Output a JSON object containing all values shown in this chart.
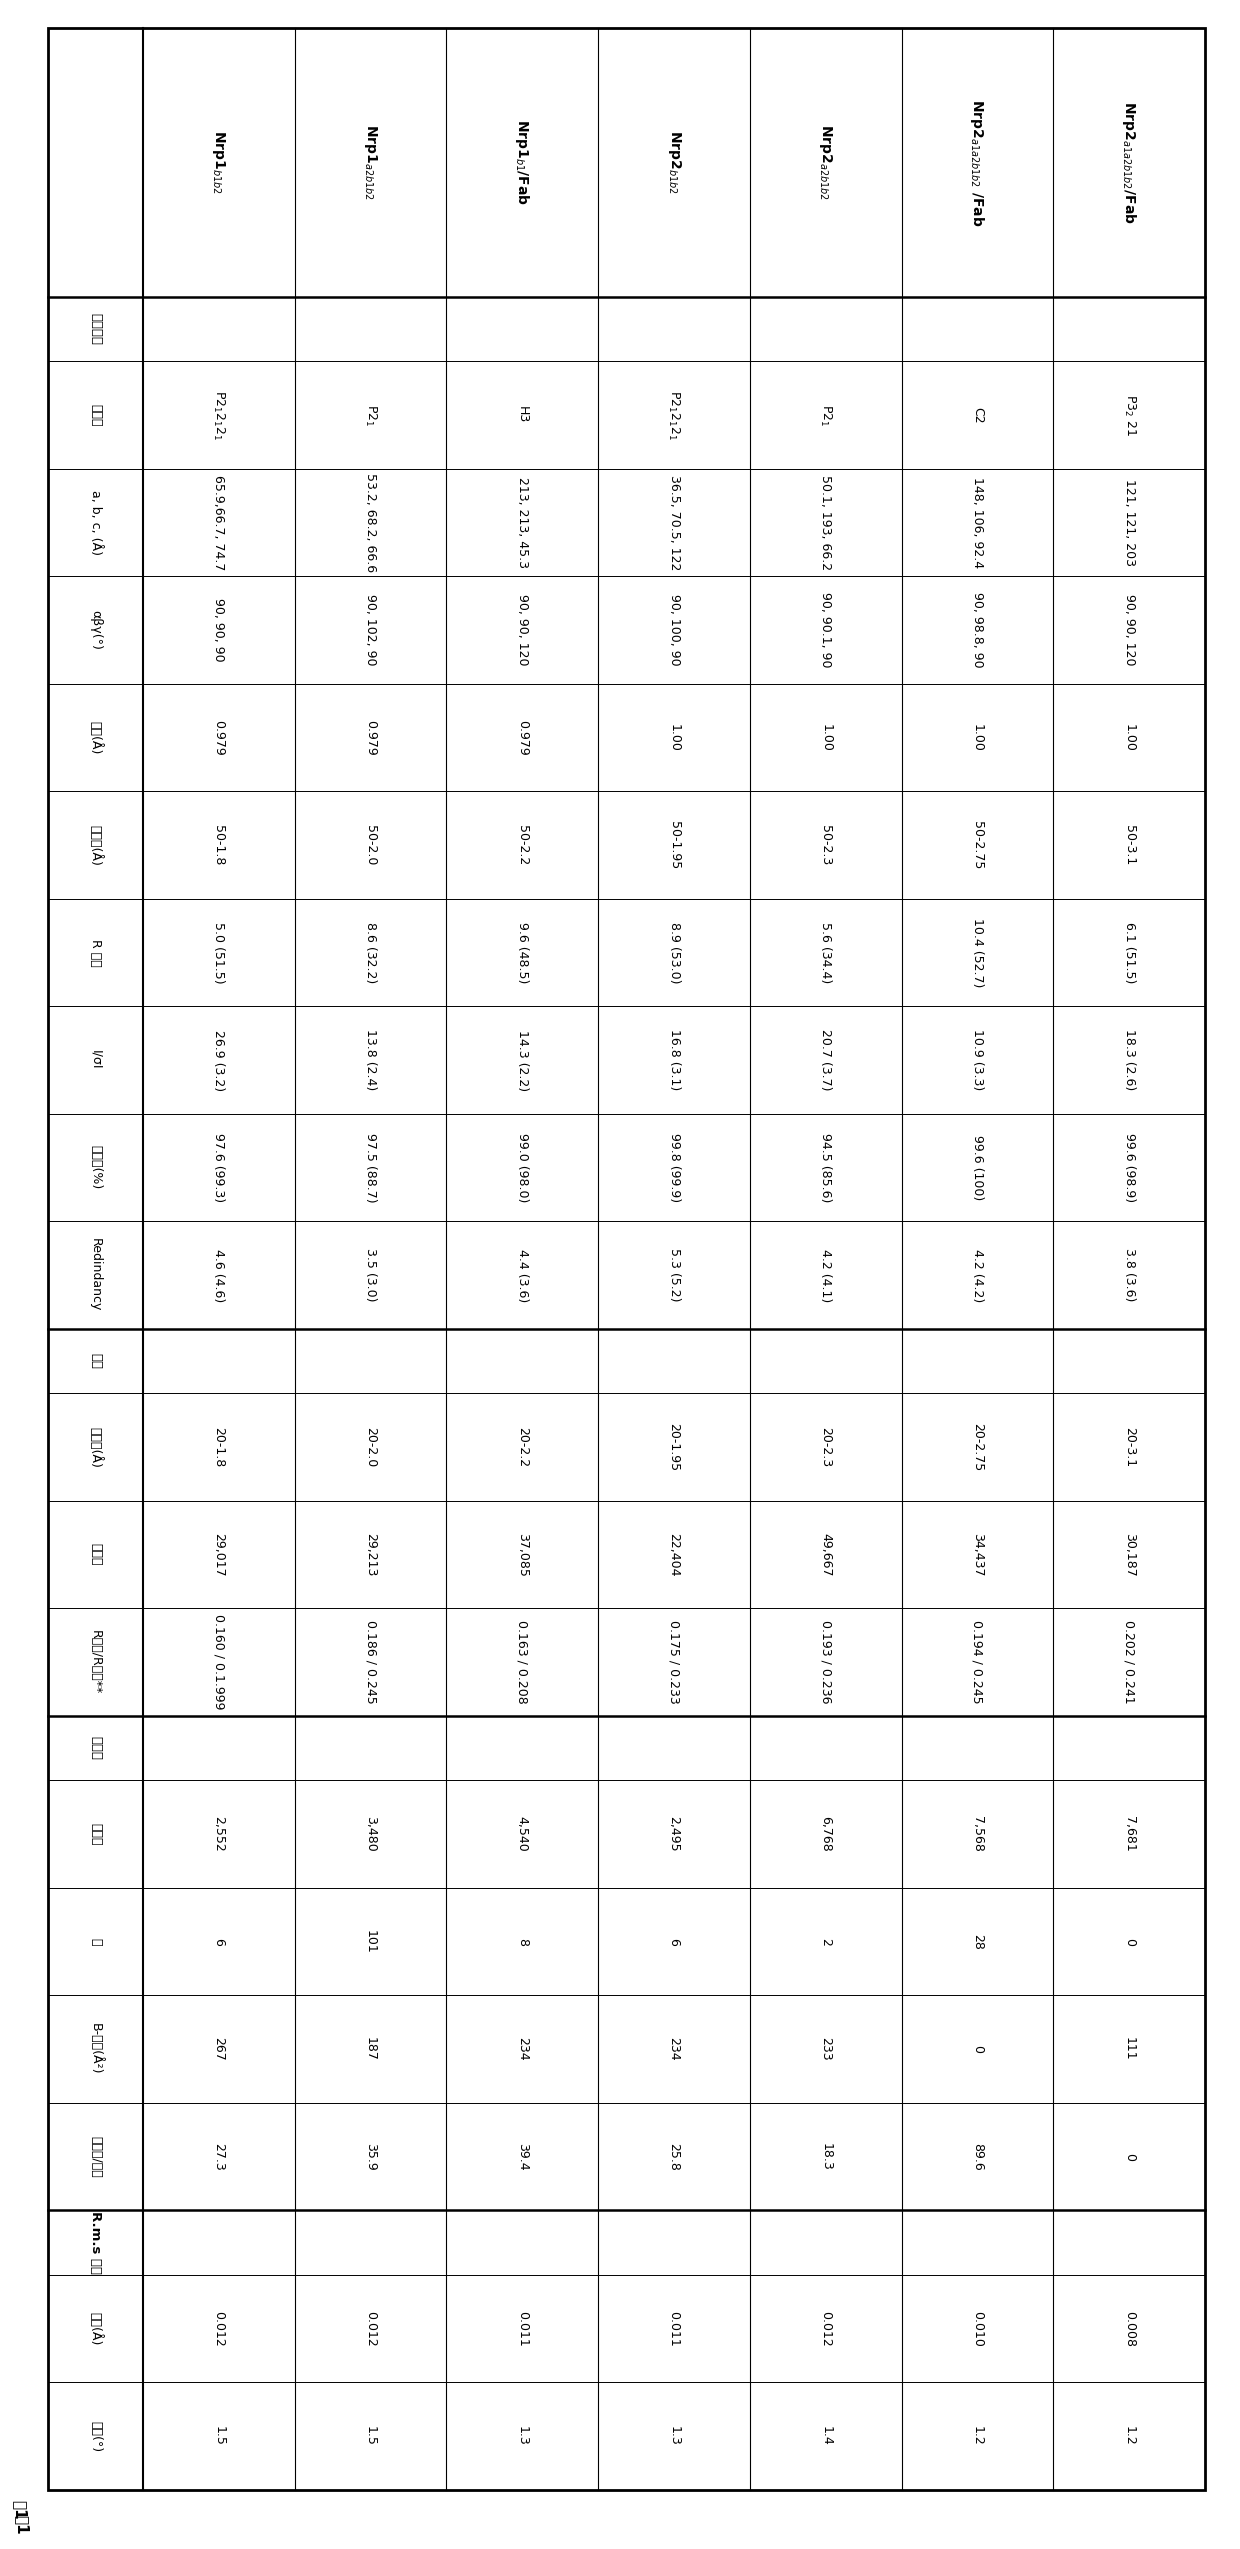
{
  "title": "表1",
  "figsize": [
    12.4,
    25.49
  ],
  "dpi": 100,
  "col_headers": [
    "数据收集",
    "Nrp1$_{b1b2}$",
    "Nrp1$_{a2b1b2}$",
    "Nrp1$_{b1}$/Fab",
    "Nrp2$_{b1b2}$",
    "Nrp2$_{a2b1b2}$",
    "Nrp2$_{a1a2b1b2}$ /Fab",
    "Nrp2$_{a1a2b1b2}$/Fab"
  ],
  "row_headers": [
    "空间群",
    "a, b, c, (Å)",
    "αβγ(°)",
    "波长(Å)",
    "分辨率(Å)",
    "R 归并",
    "I/σI",
    "完全性(%)",
    "Redindancy"
  ],
  "row_headers2": [
    "分辨率(Å)",
    "反射数",
    "R工作/R自由**"
  ],
  "row_headers3": [
    "蛋白质",
    "水",
    "B-因子(Å²)",
    "蛋白质/原子"
  ],
  "row_headers4": [
    "键长(Å)",
    "键角(°)"
  ],
  "section_headers": [
    "数据收集",
    "精化",
    "原子数",
    "R.m.s 偏差"
  ],
  "data": [
    [
      "P2$_1$2$_1$2$_1$",
      "P2$_1$",
      "H3",
      "P2$_1$2$_1$2$_1$",
      "P2$_1$",
      "C2",
      "P3$_2$ 21"
    ],
    [
      "65.9,66.7, 74.7",
      "53.2, 68.2, 66.6",
      "213, 213, 45.3",
      "36.5, 70.5, 122",
      "50.1, 193, 66.2",
      "148, 106, 92.4",
      "121, 121, 203"
    ],
    [
      "90, 90, 90",
      "90, 102, 90",
      "90, 90, 120",
      "90, 100, 90",
      "90, 90.1, 90",
      "90, 98.8, 90",
      "90, 90, 120"
    ],
    [
      "0.979",
      "0.979",
      "0.979",
      "1.00",
      "1.00",
      "1.00",
      "1.00"
    ],
    [
      "50-1.8",
      "50-2.0",
      "50-2.2",
      "50-1.95",
      "50-2.3",
      "50-2.75",
      "50-3.1"
    ],
    [
      "5.0 (51.5)",
      "8.6 (32.2)",
      "9.6 (48.5)",
      "8.9 (53.0)",
      "5.6 (34.4)",
      "10.4 (52.7)",
      "6.1 (51.5)"
    ],
    [
      "26.9 (3.2)",
      "13.8 (2.4)",
      "14.3 (2.2)",
      "16.8 (3.1)",
      "20.7 (3.7)",
      "10.9 (3.3)",
      "18.3 (2.6)"
    ],
    [
      "97.6 (99.3)",
      "97.5 (88.7)",
      "99.0 (98.0)",
      "99.8 (99.9)",
      "94.5 (85.6)",
      "99.6 (100)",
      "99.6 (98.9)"
    ],
    [
      "4.6 (4.6)",
      "3.5 (3.0)",
      "4.4 (3.6)",
      "5.3 (5.2)",
      "4.2 (4.1)",
      "4.2 (4.2)",
      "3.8 (3.6)"
    ],
    [
      "20-1.8",
      "20-2.0",
      "20-2.2",
      "20-1.95",
      "20-2.3",
      "20-2.75",
      "20-3.1"
    ],
    [
      "29,017",
      "29,213",
      "37,085",
      "22,404",
      "49,667",
      "34,437",
      "30,187"
    ],
    [
      "0.160 / 0.1.999",
      "0.186 / 0.245",
      "0.163 / 0.208",
      "0.175 / 0.233",
      "0.193 / 0.236",
      "0.194 / 0.245",
      "0.202 / 0.241"
    ],
    [
      "2,552",
      "3,480",
      "4,540",
      "2,495",
      "6,768",
      "7,568",
      "7,681"
    ],
    [
      "6",
      "101",
      "8",
      "6",
      "2",
      "28",
      "0"
    ],
    [
      "267",
      "187",
      "234",
      "234",
      "233",
      "0",
      "111"
    ],
    [
      "27.3",
      "35.9",
      "39.4",
      "25.8",
      "18.3",
      "89.6",
      "0"
    ],
    [
      "0.012",
      "0.012",
      "0.011",
      "0.011",
      "0.012",
      "0.010",
      "0.008"
    ],
    [
      "1.5",
      "1.5",
      "1.3",
      "1.3",
      "1.4",
      "1.2",
      "1.2"
    ]
  ],
  "bg_color": "#ffffff",
  "text_color": "#000000",
  "line_color": "#000000"
}
